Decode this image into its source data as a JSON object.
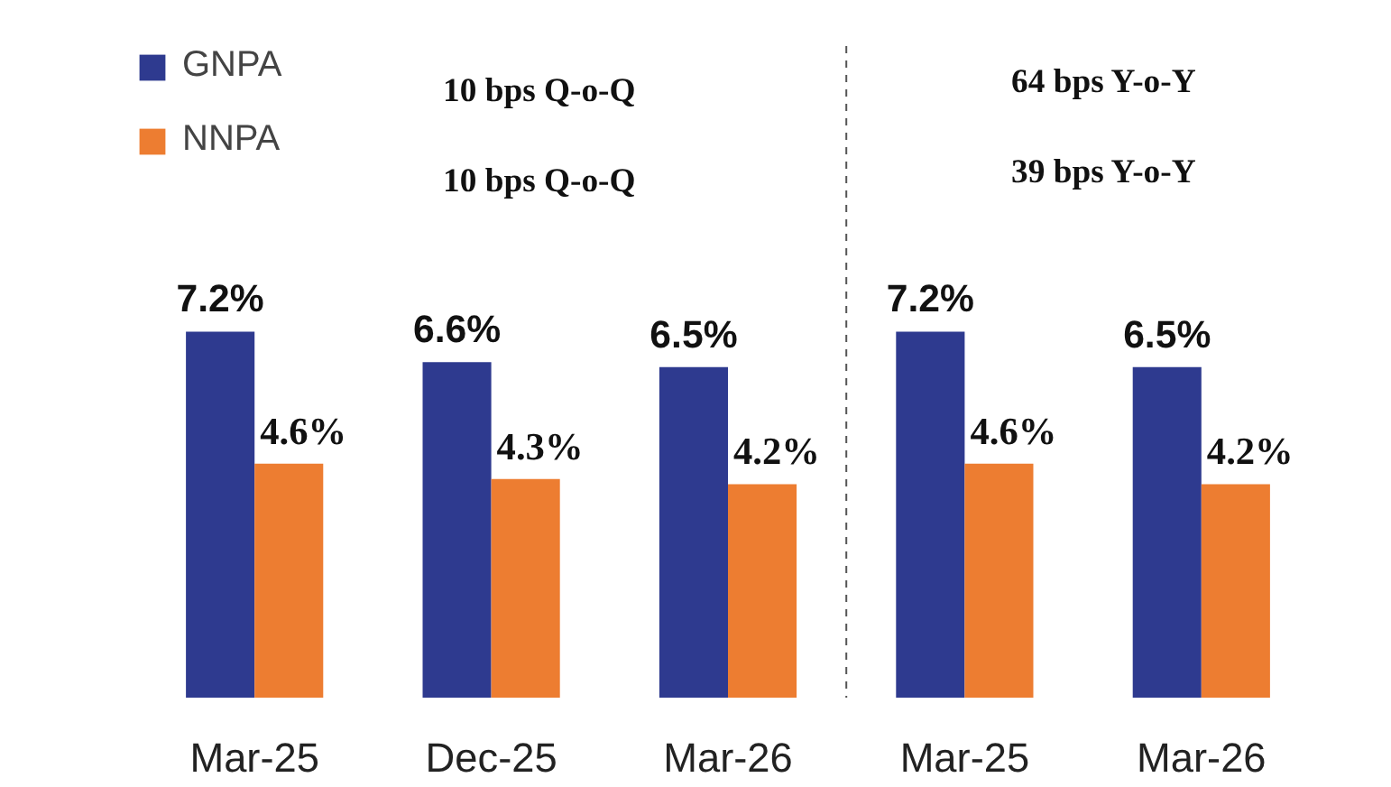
{
  "chart_data": {
    "type": "bar",
    "categories": [
      "Mar-25",
      "Dec-25",
      "Mar-26",
      "Mar-25",
      "Mar-26"
    ],
    "series": [
      {
        "name": "GNPA",
        "color": "#2e3a8f",
        "values": [
          7.2,
          6.6,
          6.5,
          7.2,
          6.5
        ],
        "value_labels": [
          "7.2%",
          "6.6%",
          "6.5%",
          "7.2%",
          "6.5%"
        ]
      },
      {
        "name": "NNPA",
        "color": "#ed7d31",
        "values": [
          4.6,
          4.3,
          4.2,
          4.6,
          4.2
        ],
        "value_labels": [
          "4.6%",
          "4.3%",
          "4.2%",
          "4.6%",
          "4.2%"
        ]
      }
    ],
    "annotations": [
      "10 bps Q-o-Q",
      "10 bps Q-o-Q",
      "64 bps Y-o-Y",
      "39 bps Y-o-Y"
    ],
    "legend": "top left",
    "grid": false
  }
}
